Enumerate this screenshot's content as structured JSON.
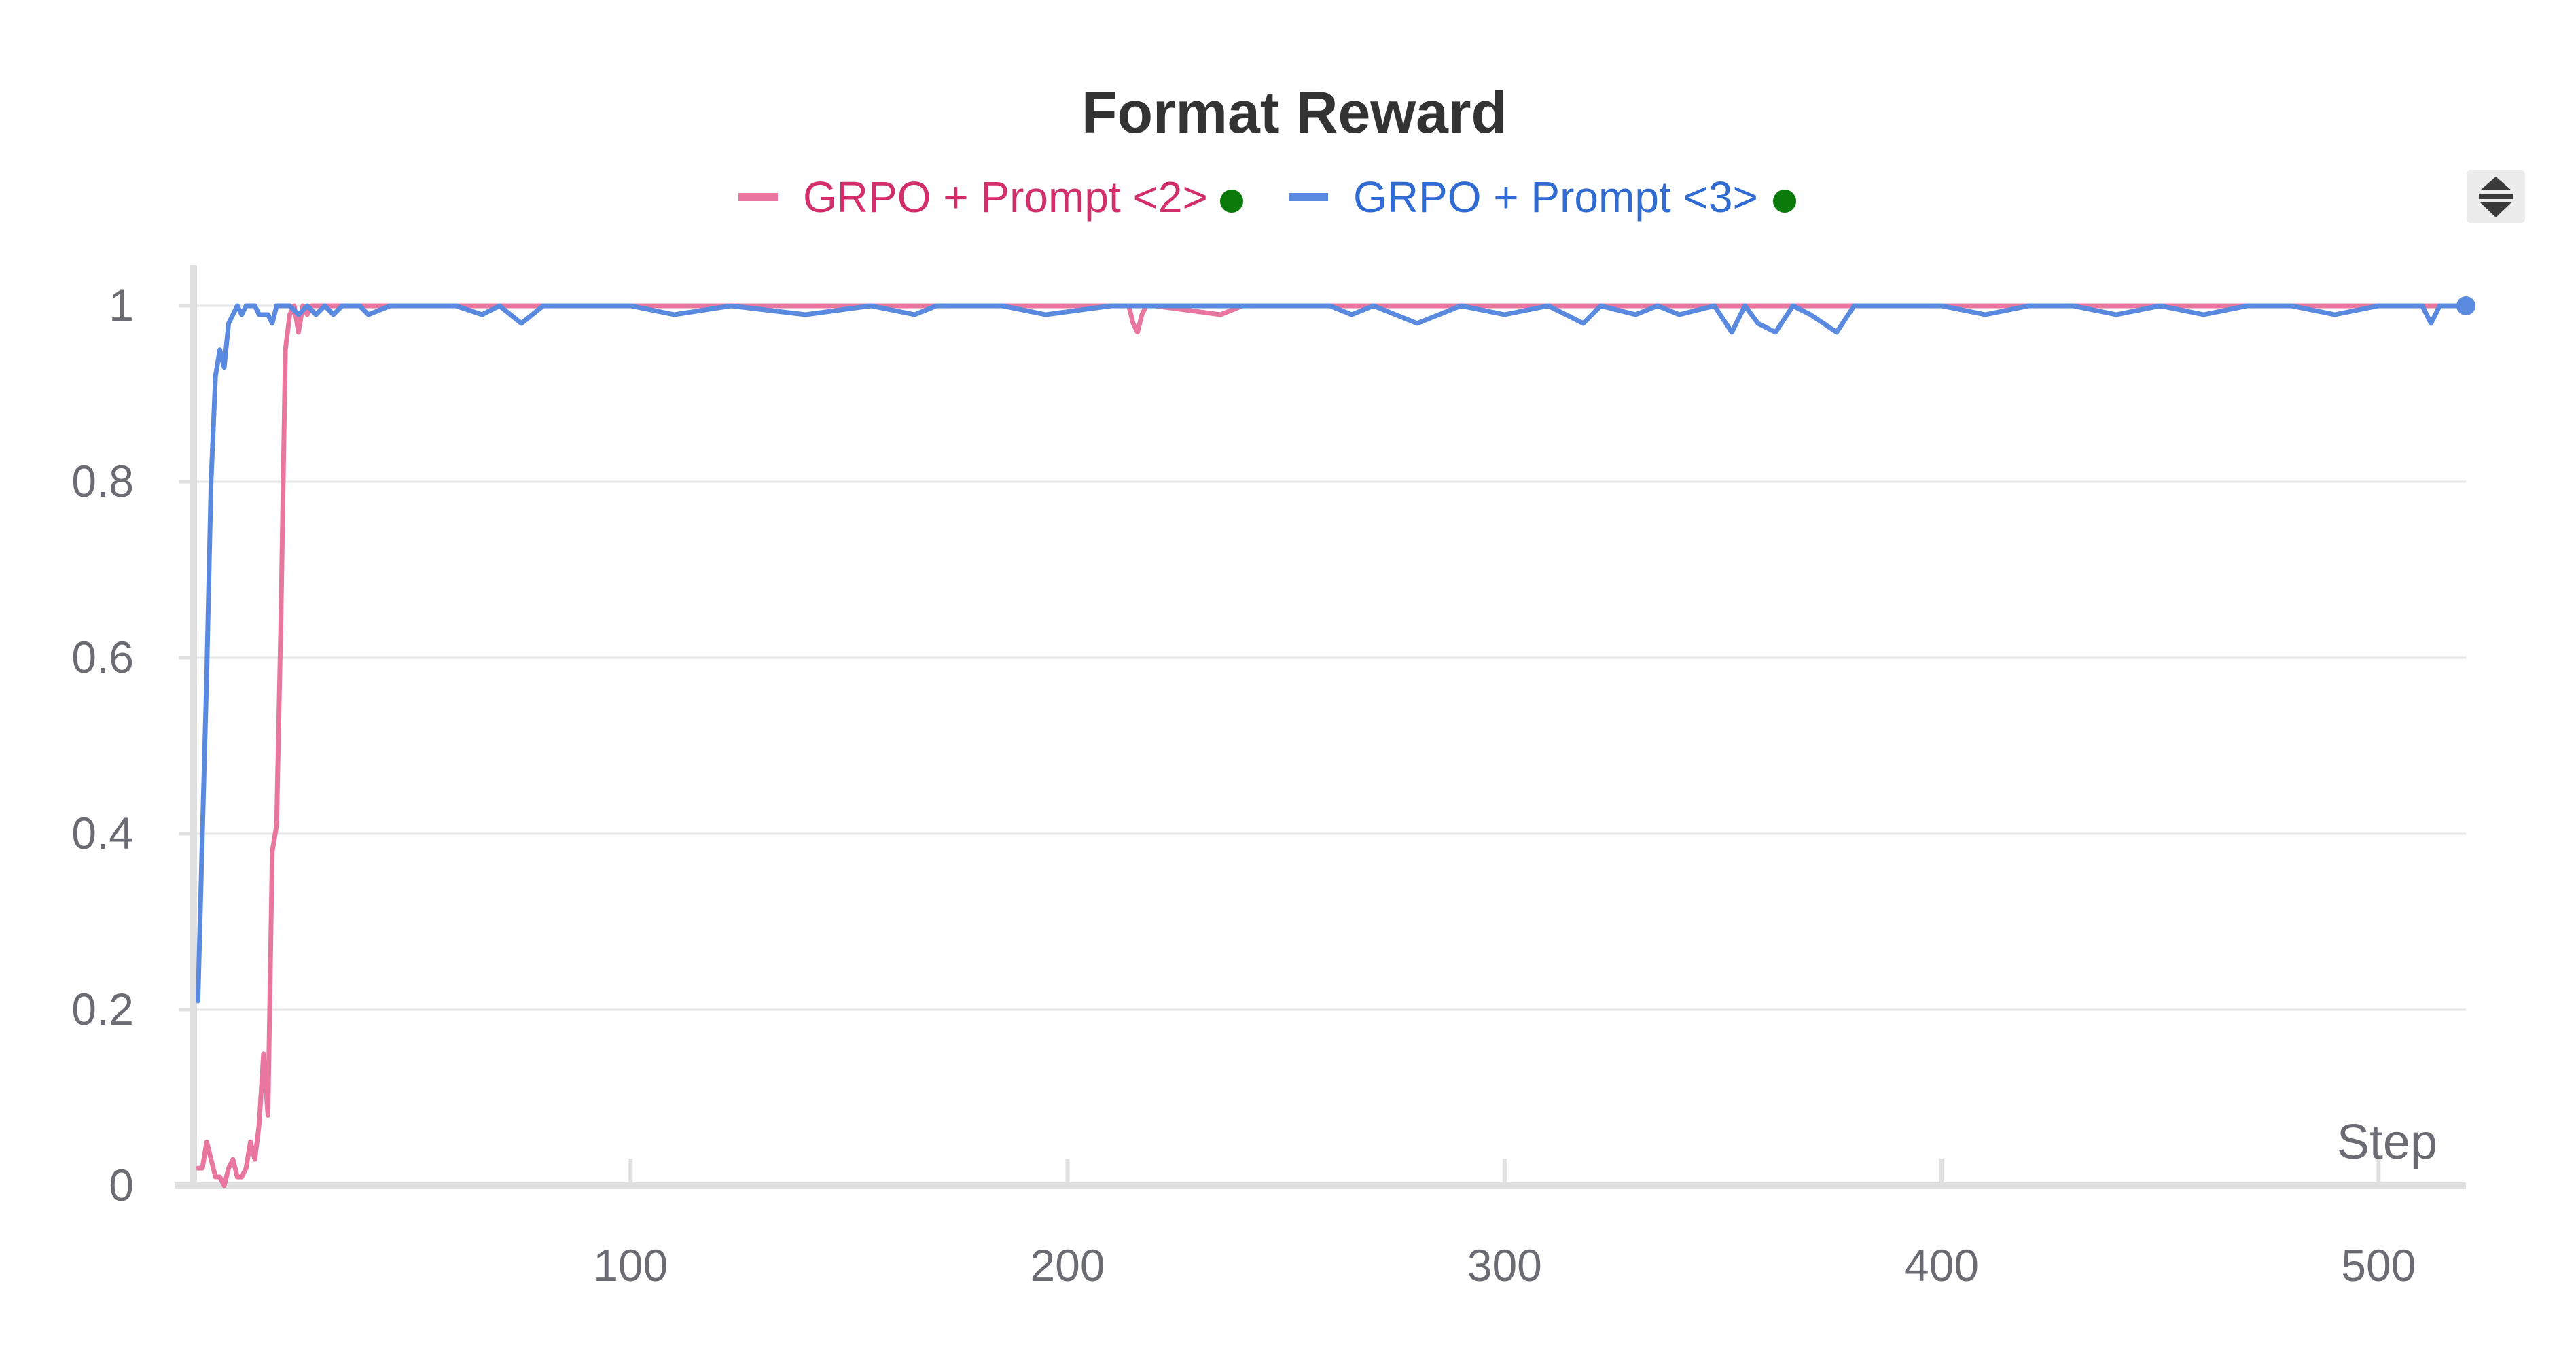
{
  "chart_data": {
    "type": "line",
    "title": "Format Reward",
    "xlabel": "Step",
    "ylabel": "",
    "xlim": [
      0,
      520
    ],
    "ylim": [
      0,
      1
    ],
    "x_ticks": [
      100,
      200,
      300,
      400,
      500
    ],
    "y_ticks": [
      0,
      0.2,
      0.4,
      0.6,
      0.8,
      1
    ],
    "y_tick_labels": [
      "0",
      "0.2",
      "0.4",
      "0.6",
      "0.8",
      "1"
    ],
    "grid": true,
    "legend_position": "top-center",
    "series": [
      {
        "name": "GRPO + Prompt <2>",
        "color": "#e8769f",
        "text_color": "#d22e6a",
        "status_color": "#0a7a0a",
        "x": [
          1,
          2,
          3,
          4,
          5,
          6,
          7,
          8,
          9,
          10,
          11,
          12,
          13,
          14,
          15,
          16,
          17,
          18,
          19,
          20,
          21,
          22,
          23,
          24,
          25,
          26,
          27,
          28,
          29,
          30,
          35,
          40,
          50,
          60,
          70,
          80,
          90,
          100,
          120,
          140,
          160,
          180,
          200,
          210,
          214,
          215,
          216,
          217,
          218,
          220,
          235,
          240,
          260,
          280,
          300,
          320,
          340,
          360,
          380,
          400,
          420,
          440,
          460,
          480,
          500,
          510,
          515,
          520
        ],
        "values": [
          0.02,
          0.02,
          0.05,
          0.03,
          0.01,
          0.01,
          0.0,
          0.02,
          0.03,
          0.01,
          0.01,
          0.02,
          0.05,
          0.03,
          0.07,
          0.15,
          0.08,
          0.38,
          0.41,
          0.65,
          0.95,
          0.99,
          1.0,
          0.97,
          1.0,
          0.99,
          1.0,
          1.0,
          1.0,
          1.0,
          1.0,
          1.0,
          1.0,
          1.0,
          1.0,
          1.0,
          1.0,
          1.0,
          1.0,
          1.0,
          1.0,
          1.0,
          1.0,
          1.0,
          1.0,
          0.98,
          0.97,
          0.99,
          1.0,
          1.0,
          0.99,
          1.0,
          1.0,
          1.0,
          1.0,
          1.0,
          1.0,
          1.0,
          1.0,
          1.0,
          1.0,
          1.0,
          1.0,
          1.0,
          1.0,
          1.0,
          1.0,
          1.0
        ]
      },
      {
        "name": "GRPO + Prompt <3>",
        "color": "#5a8ae0",
        "text_color": "#2f6bd2",
        "status_color": "#0a7a0a",
        "x": [
          1,
          2,
          3,
          4,
          5,
          6,
          7,
          8,
          9,
          10,
          11,
          12,
          13,
          14,
          15,
          16,
          17,
          18,
          19,
          20,
          22,
          24,
          26,
          28,
          30,
          32,
          34,
          36,
          38,
          40,
          45,
          50,
          60,
          66,
          70,
          75,
          80,
          100,
          110,
          123,
          140,
          155,
          165,
          170,
          185,
          195,
          210,
          220,
          260,
          265,
          270,
          280,
          290,
          300,
          310,
          318,
          322,
          330,
          335,
          340,
          348,
          352,
          355,
          358,
          362,
          366,
          370,
          376,
          380,
          390,
          400,
          410,
          420,
          430,
          440,
          450,
          460,
          470,
          480,
          490,
          500,
          510,
          512,
          514,
          516,
          518,
          520
        ],
        "values": [
          0.21,
          0.4,
          0.58,
          0.8,
          0.92,
          0.95,
          0.93,
          0.98,
          0.99,
          1.0,
          0.99,
          1.0,
          1.0,
          1.0,
          0.99,
          0.99,
          0.99,
          0.98,
          1.0,
          1.0,
          1.0,
          0.99,
          1.0,
          0.99,
          1.0,
          0.99,
          1.0,
          1.0,
          1.0,
          0.99,
          1.0,
          1.0,
          1.0,
          0.99,
          1.0,
          0.98,
          1.0,
          1.0,
          0.99,
          1.0,
          0.99,
          1.0,
          0.99,
          1.0,
          1.0,
          0.99,
          1.0,
          1.0,
          1.0,
          0.99,
          1.0,
          0.98,
          1.0,
          0.99,
          1.0,
          0.98,
          1.0,
          0.99,
          1.0,
          0.99,
          1.0,
          0.97,
          1.0,
          0.98,
          0.97,
          1.0,
          0.99,
          0.97,
          1.0,
          1.0,
          1.0,
          0.99,
          1.0,
          1.0,
          0.99,
          1.0,
          0.99,
          1.0,
          1.0,
          0.99,
          1.0,
          1.0,
          0.98,
          1.0,
          1.0,
          1.0,
          1.0
        ]
      }
    ]
  },
  "ui": {
    "scroll_control_icon": "up-down-arrows-icon",
    "status_icon": "green-dot-icon",
    "end_marker_icon": "blue-dot-icon"
  }
}
